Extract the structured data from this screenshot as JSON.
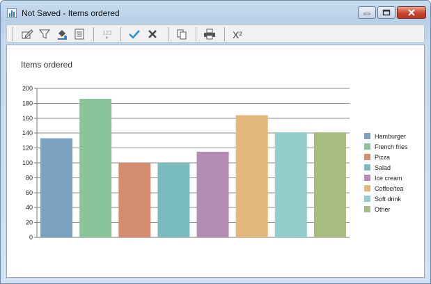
{
  "window": {
    "title": "Not Saved - Items ordered"
  },
  "toolbar": {
    "buttons": [
      {
        "icon": "edit-icon"
      },
      {
        "icon": "filter-icon"
      },
      {
        "icon": "fill-color-icon"
      },
      {
        "icon": "properties-icon"
      },
      {
        "icon": "number-format-icon",
        "label": "123"
      },
      {
        "icon": "checkmark-icon"
      },
      {
        "icon": "close-x-icon"
      },
      {
        "icon": "copy-icon"
      },
      {
        "icon": "print-icon"
      },
      {
        "icon": "chi-square-icon",
        "label": "X²"
      }
    ]
  },
  "chart_data": {
    "type": "bar",
    "title": "Items ordered",
    "categories": [
      "Hamburger",
      "French fries",
      "Pizza",
      "Salad",
      "Ice cream",
      "Coffee/tea",
      "Soft drink",
      "Other"
    ],
    "values": [
      133,
      186,
      100,
      100,
      115,
      164,
      141,
      141
    ],
    "colors": [
      "#7ba3c1",
      "#8bc49a",
      "#d38e70",
      "#7bbdbe",
      "#b38cb4",
      "#e3b77e",
      "#94cdcc",
      "#a7bc80"
    ],
    "ylim": [
      0,
      200
    ],
    "yticks": [
      0,
      20,
      40,
      60,
      80,
      100,
      120,
      140,
      160,
      180,
      200
    ],
    "grid": true,
    "legend": "right"
  }
}
